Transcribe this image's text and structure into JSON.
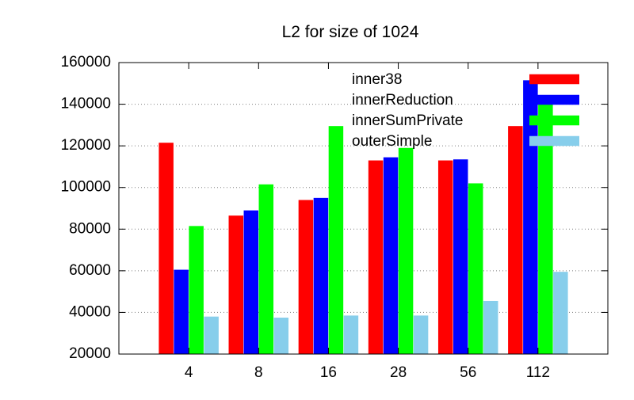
{
  "chart_data": {
    "type": "bar",
    "title": "L2 for size of 1024",
    "xlabel": "",
    "ylabel": "",
    "categories": [
      "4",
      "8",
      "16",
      "28",
      "56",
      "112"
    ],
    "ylim": [
      20000,
      160000
    ],
    "yticks": [
      20000,
      40000,
      60000,
      80000,
      100000,
      120000,
      140000,
      160000
    ],
    "grid": true,
    "legend_position": "top-right",
    "series": [
      {
        "name": "inner38",
        "color": "#ff0000",
        "values": [
          121500,
          86500,
          94000,
          113000,
          113000,
          129500
        ]
      },
      {
        "name": "innerReduction",
        "color": "#0000ff",
        "values": [
          60500,
          89000,
          95000,
          114500,
          113500,
          151500
        ]
      },
      {
        "name": "innerSumPrivate",
        "color": "#00ff00",
        "values": [
          81500,
          101500,
          129500,
          119000,
          102000,
          142500
        ]
      },
      {
        "name": "outerSimple",
        "color": "#87ceeb",
        "values": [
          38000,
          37500,
          38500,
          38500,
          45500,
          59500
        ]
      }
    ]
  }
}
